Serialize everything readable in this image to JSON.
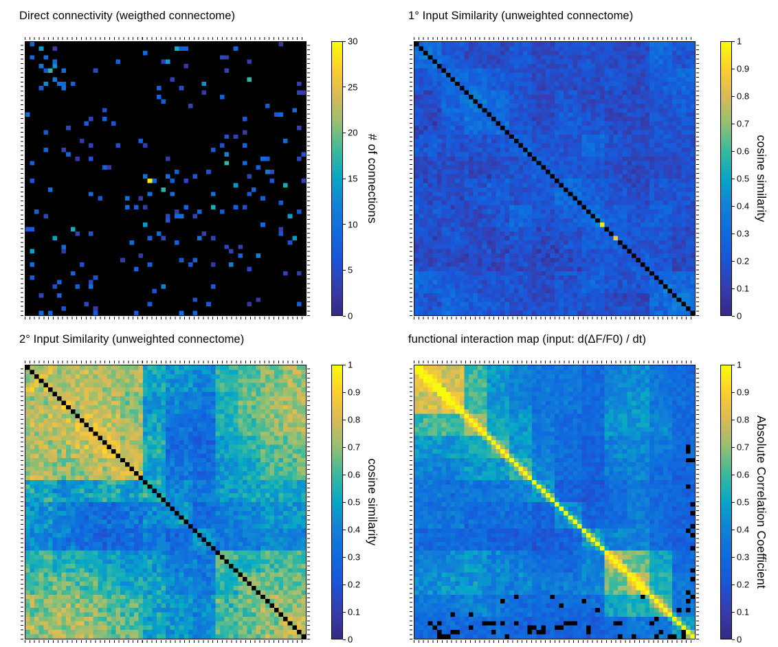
{
  "figure": {
    "name": "connectome similarity matrices",
    "background": "#ffffff",
    "axis_color": "#000000"
  },
  "chart_data": [
    {
      "type": "heatmap",
      "title": "Direct connectivity (weigthed connectome)",
      "colorbar_label": "# of connections",
      "colormap": "parula",
      "vmin": 0,
      "vmax": 30,
      "ticks": [
        0,
        5,
        10,
        15,
        20,
        25,
        30
      ],
      "n": 62,
      "render": "sparse",
      "seed": 21,
      "zero_color": "#000000",
      "density": 0.045,
      "diag_cluster": true,
      "hot_cells": [
        [
          31,
          27,
          29
        ],
        [
          33,
          30,
          17
        ],
        [
          9,
          4,
          13
        ],
        [
          50,
          45,
          12
        ],
        [
          44,
          38,
          10
        ]
      ],
      "description": "Mostly empty (black) sparse matrix with scattered low blue connection counts, a faint connected cluster near the top-left diagonal and a single bright yellow high-count cell near the center."
    },
    {
      "type": "heatmap",
      "title": "1° Input Similarity (unweighted connectome)",
      "colorbar_label": "cosine similarity",
      "colormap": "parula",
      "vmin": 0,
      "vmax": 1,
      "ticks": [
        0,
        0.1,
        0.2,
        0.3,
        0.4,
        0.5,
        0.6,
        0.7,
        0.8,
        0.9,
        1
      ],
      "n": 62,
      "render": "blocks",
      "seed": 7,
      "noise": 0.07,
      "symmetric": true,
      "diag": "black",
      "diag_hot": [
        [
          41,
          0.95
        ],
        [
          44,
          0.88
        ]
      ],
      "pattern": [
        [
          0.32,
          0.22,
          0.16,
          0.15,
          0.2,
          0.15,
          0.16,
          0.2,
          0.15,
          0.15,
          0.28,
          0.2
        ],
        [
          0.22,
          0.3,
          0.28,
          0.24,
          0.2,
          0.15,
          0.15,
          0.16,
          0.2,
          0.15,
          0.24,
          0.28
        ],
        [
          0.16,
          0.28,
          0.34,
          0.3,
          0.2,
          0.16,
          0.2,
          0.15,
          0.16,
          0.15,
          0.2,
          0.24
        ],
        [
          0.15,
          0.24,
          0.3,
          0.3,
          0.2,
          0.15,
          0.24,
          0.2,
          0.15,
          0.15,
          0.2,
          0.2
        ],
        [
          0.2,
          0.2,
          0.2,
          0.2,
          0.28,
          0.2,
          0.2,
          0.28,
          0.2,
          0.15,
          0.2,
          0.2
        ],
        [
          0.15,
          0.15,
          0.16,
          0.15,
          0.2,
          0.24,
          0.2,
          0.2,
          0.16,
          0.14,
          0.15,
          0.16
        ],
        [
          0.16,
          0.15,
          0.2,
          0.24,
          0.2,
          0.2,
          0.3,
          0.24,
          0.2,
          0.15,
          0.2,
          0.2
        ],
        [
          0.2,
          0.16,
          0.15,
          0.2,
          0.28,
          0.2,
          0.24,
          0.32,
          0.24,
          0.2,
          0.24,
          0.2
        ],
        [
          0.15,
          0.2,
          0.16,
          0.15,
          0.2,
          0.16,
          0.2,
          0.24,
          0.28,
          0.2,
          0.2,
          0.16
        ],
        [
          0.15,
          0.15,
          0.15,
          0.15,
          0.15,
          0.14,
          0.15,
          0.2,
          0.2,
          0.24,
          0.2,
          0.15
        ],
        [
          0.28,
          0.24,
          0.2,
          0.2,
          0.2,
          0.15,
          0.2,
          0.24,
          0.2,
          0.2,
          0.32,
          0.28
        ],
        [
          0.2,
          0.28,
          0.24,
          0.2,
          0.2,
          0.16,
          0.2,
          0.2,
          0.16,
          0.15,
          0.28,
          0.36
        ]
      ],
      "description": "Predominantly dark indigo (low similarity ~0.1-0.2) with blocky cyan patches (~0.3-0.5), a black main diagonal and two bright yellow cells on the diagonal about two-thirds down."
    },
    {
      "type": "heatmap",
      "title": "2° Input Similarity (unweighted connectome)",
      "colorbar_label": "cosine similarity",
      "colormap": "parula",
      "vmin": 0,
      "vmax": 1,
      "ticks": [
        0,
        0.1,
        0.2,
        0.3,
        0.4,
        0.5,
        0.6,
        0.7,
        0.8,
        0.9,
        1
      ],
      "n": 62,
      "render": "blocks",
      "seed": 13,
      "noise": 0.09,
      "symmetric": true,
      "diag": "black",
      "pattern": [
        [
          0.78,
          0.74,
          0.76,
          0.72,
          0.74,
          0.52,
          0.45,
          0.4,
          0.58,
          0.64,
          0.68,
          0.72
        ],
        [
          0.74,
          0.8,
          0.76,
          0.74,
          0.68,
          0.46,
          0.4,
          0.36,
          0.52,
          0.66,
          0.72,
          0.74
        ],
        [
          0.76,
          0.76,
          0.82,
          0.78,
          0.72,
          0.5,
          0.32,
          0.3,
          0.56,
          0.62,
          0.7,
          0.72
        ],
        [
          0.72,
          0.74,
          0.78,
          0.8,
          0.74,
          0.55,
          0.3,
          0.28,
          0.5,
          0.56,
          0.62,
          0.66
        ],
        [
          0.74,
          0.68,
          0.72,
          0.74,
          0.76,
          0.5,
          0.34,
          0.3,
          0.46,
          0.52,
          0.6,
          0.64
        ],
        [
          0.52,
          0.46,
          0.5,
          0.55,
          0.5,
          0.56,
          0.4,
          0.35,
          0.46,
          0.5,
          0.52,
          0.52
        ],
        [
          0.45,
          0.4,
          0.32,
          0.3,
          0.34,
          0.4,
          0.46,
          0.3,
          0.36,
          0.4,
          0.45,
          0.46
        ],
        [
          0.4,
          0.36,
          0.3,
          0.28,
          0.3,
          0.35,
          0.3,
          0.42,
          0.36,
          0.36,
          0.4,
          0.4
        ],
        [
          0.58,
          0.52,
          0.56,
          0.5,
          0.46,
          0.46,
          0.36,
          0.36,
          0.62,
          0.56,
          0.6,
          0.62
        ],
        [
          0.64,
          0.66,
          0.62,
          0.56,
          0.52,
          0.5,
          0.4,
          0.36,
          0.56,
          0.66,
          0.64,
          0.66
        ],
        [
          0.68,
          0.72,
          0.7,
          0.62,
          0.6,
          0.52,
          0.45,
          0.4,
          0.6,
          0.64,
          0.72,
          0.7
        ],
        [
          0.72,
          0.74,
          0.72,
          0.66,
          0.64,
          0.52,
          0.46,
          0.4,
          0.62,
          0.66,
          0.7,
          0.76
        ]
      ],
      "description": "Dense block-structured similarity matrix: large yellow high-similarity block in the upper-left, darker blue vertical/horizontal bands through the middle columns, teal and yellow striped blocks elsewhere, black main diagonal."
    },
    {
      "type": "heatmap",
      "title": "functional interaction map (input: d(ΔF/F0) / dt)",
      "colorbar_label": "Absolute Correlation Coefficient",
      "colormap": "parula",
      "vmin": 0,
      "vmax": 1,
      "ticks": [
        0,
        0.1,
        0.2,
        0.3,
        0.4,
        0.5,
        0.6,
        0.7,
        0.8,
        0.9,
        1
      ],
      "n": 62,
      "render": "blocks",
      "seed": 5,
      "noise": 0.07,
      "symmetric": true,
      "diag": "max",
      "diag_boost": 0.15,
      "speck_prob": 0.16,
      "pattern": [
        [
          0.84,
          0.8,
          0.6,
          0.46,
          0.4,
          0.36,
          0.35,
          0.3,
          0.4,
          0.42,
          0.35,
          0.3
        ],
        [
          0.8,
          0.84,
          0.6,
          0.46,
          0.4,
          0.32,
          0.35,
          0.3,
          0.42,
          0.45,
          0.35,
          0.3
        ],
        [
          0.6,
          0.6,
          0.7,
          0.5,
          0.46,
          0.36,
          0.3,
          0.3,
          0.45,
          0.45,
          0.4,
          0.3
        ],
        [
          0.46,
          0.46,
          0.5,
          0.6,
          0.46,
          0.36,
          0.3,
          0.26,
          0.4,
          0.4,
          0.35,
          0.3
        ],
        [
          0.4,
          0.4,
          0.46,
          0.46,
          0.56,
          0.4,
          0.3,
          0.26,
          0.36,
          0.4,
          0.3,
          0.26
        ],
        [
          0.36,
          0.32,
          0.36,
          0.36,
          0.4,
          0.46,
          0.26,
          0.22,
          0.3,
          0.36,
          0.3,
          0.26
        ],
        [
          0.35,
          0.35,
          0.3,
          0.3,
          0.3,
          0.26,
          0.42,
          0.26,
          0.3,
          0.36,
          0.3,
          0.26
        ],
        [
          0.3,
          0.3,
          0.3,
          0.26,
          0.26,
          0.22,
          0.26,
          0.46,
          0.4,
          0.4,
          0.3,
          0.26
        ],
        [
          0.4,
          0.42,
          0.45,
          0.4,
          0.36,
          0.3,
          0.3,
          0.4,
          0.7,
          0.66,
          0.5,
          0.3
        ],
        [
          0.42,
          0.45,
          0.45,
          0.4,
          0.4,
          0.36,
          0.36,
          0.4,
          0.66,
          0.76,
          0.55,
          0.36
        ],
        [
          0.35,
          0.35,
          0.4,
          0.36,
          0.3,
          0.3,
          0.3,
          0.3,
          0.5,
          0.55,
          0.6,
          0.36
        ],
        [
          0.3,
          0.3,
          0.3,
          0.3,
          0.26,
          0.26,
          0.26,
          0.26,
          0.3,
          0.36,
          0.36,
          0.5
        ]
      ],
      "description": "Teal correlation matrix with a bright yellow block in the upper-left, a yellow block in the lower-right, darker purple mid regions, a bright yellow main diagonal, and scattered black (missing) cells along the bottom rows and right columns."
    }
  ]
}
